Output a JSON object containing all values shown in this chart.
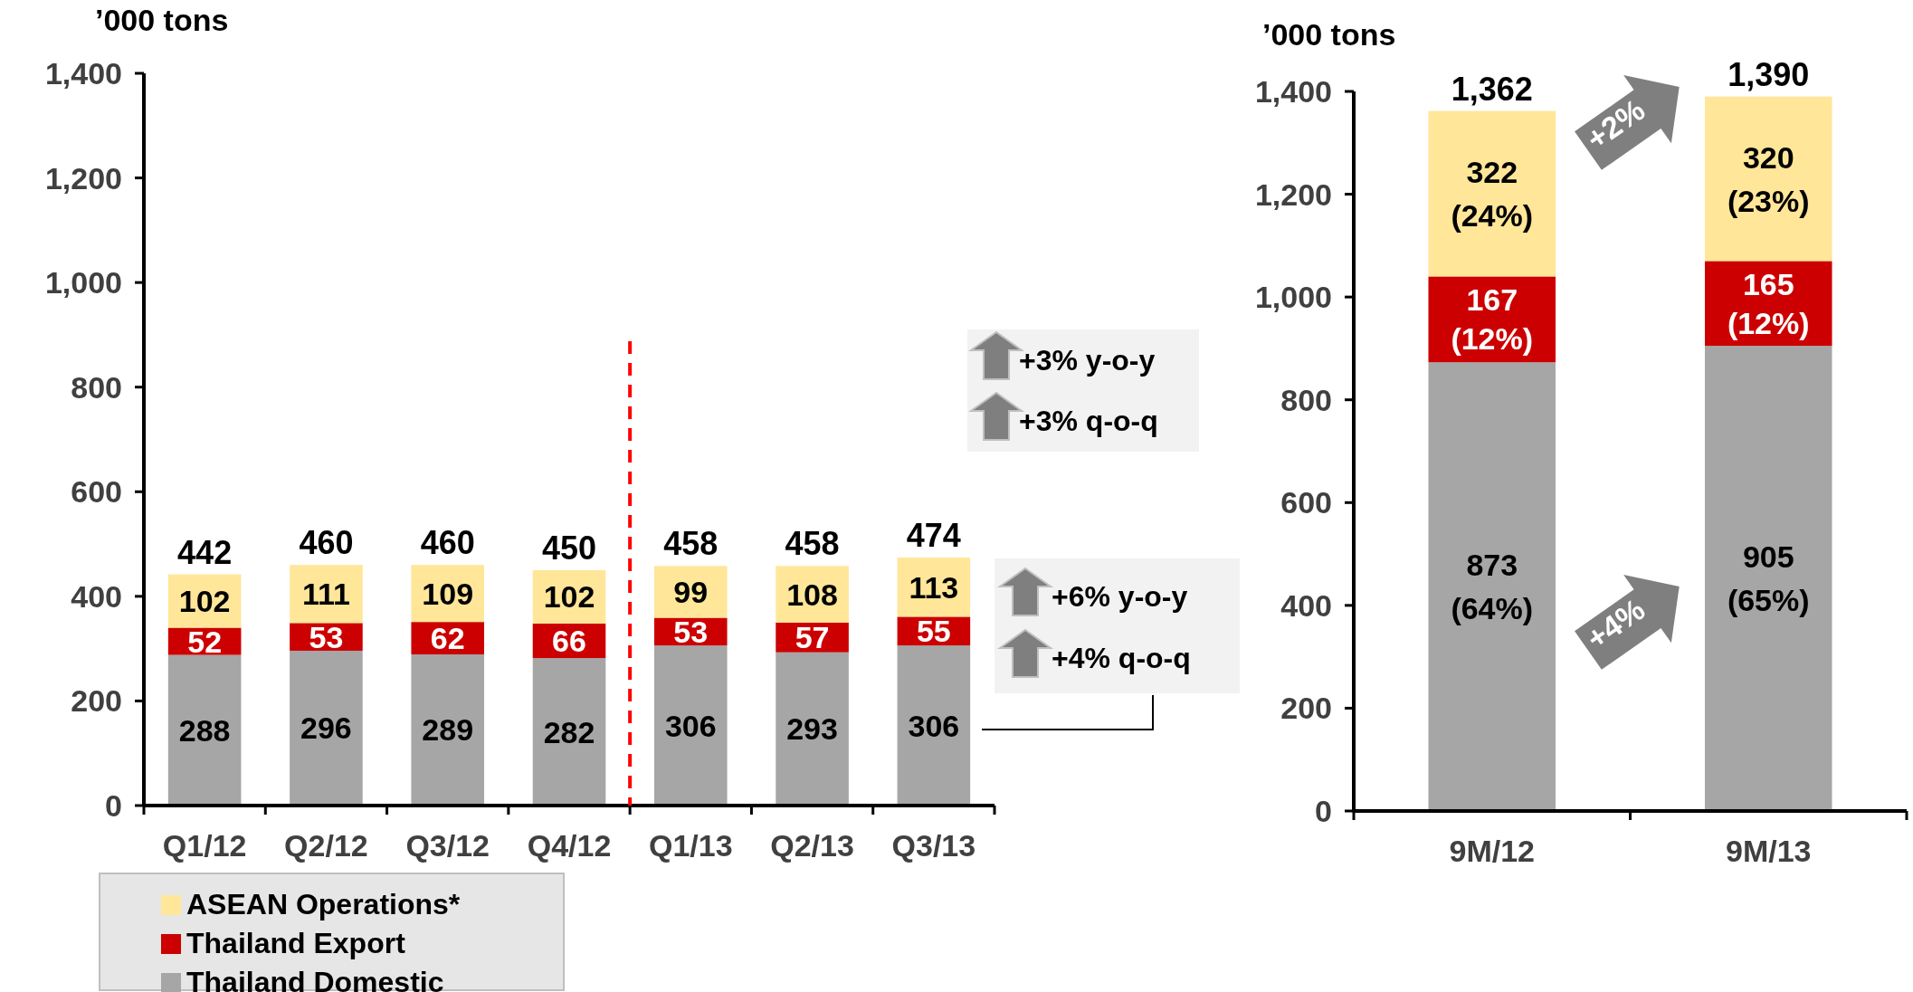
{
  "chart_data": [
    {
      "type": "bar",
      "stacked": true,
      "title": "’000 tons",
      "categories": [
        "Q1/12",
        "Q2/12",
        "Q3/12",
        "Q4/12",
        "Q1/13",
        "Q2/13",
        "Q3/13"
      ],
      "series": [
        {
          "name": "Thailand Domestic",
          "color": "#a6a6a6",
          "values": [
            288,
            296,
            289,
            282,
            306,
            293,
            306
          ]
        },
        {
          "name": "Thailand Export",
          "color": "#cc0000",
          "values": [
            52,
            53,
            62,
            66,
            53,
            57,
            55
          ]
        },
        {
          "name": "ASEAN Operations*",
          "color": "#ffe699",
          "values": [
            102,
            111,
            109,
            102,
            99,
            108,
            113
          ]
        }
      ],
      "totals": [
        "442",
        "460",
        "460",
        "450",
        "458",
        "458",
        "474"
      ],
      "data_labels": true,
      "ylim": [
        0,
        1400
      ],
      "yticks": [
        {
          "value": 0,
          "label": "0"
        },
        {
          "value": 200,
          "label": "200"
        },
        {
          "value": 400,
          "label": "400"
        },
        {
          "value": 600,
          "label": "600"
        },
        {
          "value": 800,
          "label": "800"
        },
        {
          "value": 1000,
          "label": "1,000"
        },
        {
          "value": 1200,
          "label": "1,200"
        },
        {
          "value": 1400,
          "label": "1,400"
        }
      ],
      "grid": false,
      "legend": "bottom left",
      "annotations": [
        "+3% y-o-y",
        "+3% q-o-q",
        "+6% y-o-y",
        "+4% q-o-q"
      ]
    },
    {
      "type": "bar",
      "stacked": true,
      "title": "’000 tons",
      "categories": [
        "9M/12",
        "9M/13"
      ],
      "series": [
        {
          "color": "#a6a6a6",
          "values": [
            873,
            905
          ],
          "value_labels": [
            "873 (64%)",
            "905 (65%)"
          ]
        },
        {
          "color": "#cc0000",
          "values": [
            167,
            165
          ],
          "value_labels": [
            "167 (12%)",
            "165 (12%)"
          ]
        },
        {
          "color": "#ffe699",
          "values": [
            322,
            320
          ],
          "value_labels": [
            "322 (24%)",
            "320 (23%)"
          ]
        }
      ],
      "totals": [
        "1,362",
        "1,390"
      ],
      "ylim": [
        0,
        1400
      ],
      "yticks": [
        {
          "value": 0,
          "label": "0"
        },
        {
          "value": 200,
          "label": "200"
        },
        {
          "value": 400,
          "label": "400"
        },
        {
          "value": 600,
          "label": "600"
        },
        {
          "value": 800,
          "label": "800"
        },
        {
          "value": 1000,
          "label": "1,000"
        },
        {
          "value": 1200,
          "label": "1,200"
        },
        {
          "value": 1400,
          "label": "1,400"
        }
      ],
      "grid": false,
      "legend": false,
      "annotations": [
        "+2%",
        "+4%"
      ]
    }
  ]
}
